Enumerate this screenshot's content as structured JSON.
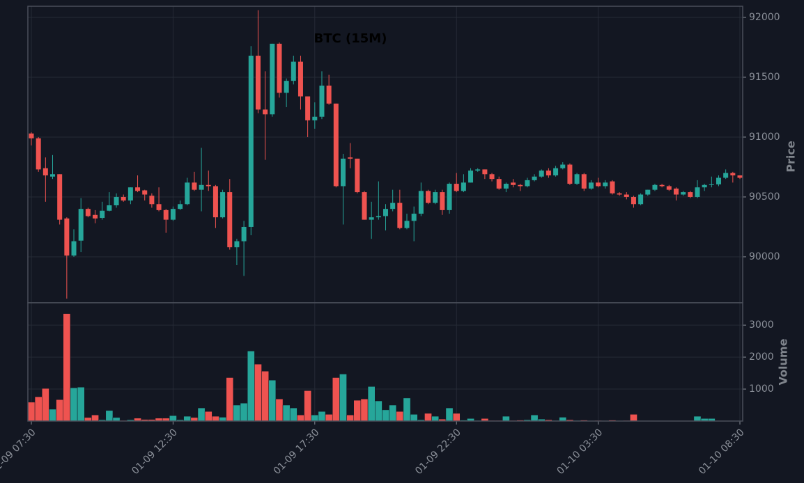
{
  "chart_data": {
    "type": "candlestick",
    "title": "BTC (15M)",
    "ylabel": "Price",
    "categories": [
      "01-09 07:30",
      null,
      null,
      null,
      null,
      null,
      null,
      null,
      null,
      null,
      null,
      null,
      null,
      null,
      null,
      null,
      null,
      null,
      null,
      null,
      "01-09 12:30",
      null,
      null,
      null,
      null,
      null,
      null,
      null,
      null,
      null,
      null,
      null,
      null,
      null,
      null,
      null,
      null,
      null,
      null,
      null,
      "01-09 17:30",
      null,
      null,
      null,
      null,
      null,
      null,
      null,
      null,
      null,
      null,
      null,
      null,
      null,
      null,
      null,
      null,
      null,
      null,
      null,
      "01-09 22:30",
      null,
      null,
      null,
      null,
      null,
      null,
      null,
      null,
      null,
      null,
      null,
      null,
      null,
      null,
      null,
      null,
      null,
      null,
      null,
      "01-10 03:30",
      null,
      null,
      null,
      null,
      null,
      null,
      null,
      null,
      null,
      null,
      null,
      null,
      null,
      null,
      null,
      null,
      null,
      null,
      null,
      "01-10 08:30"
    ],
    "open": [
      91030,
      90990,
      90740,
      90670,
      90690,
      90320,
      90010,
      90135,
      90400,
      90350,
      90325,
      90385,
      90430,
      90500,
      90470,
      90580,
      90555,
      90510,
      90440,
      90390,
      90310,
      90400,
      90440,
      90620,
      90560,
      90600,
      90590,
      90330,
      90540,
      90080,
      90130,
      90250,
      91680,
      91230,
      91190,
      91780,
      91370,
      91470,
      91630,
      91340,
      91140,
      91170,
      91430,
      91280,
      90590,
      90830,
      90820,
      90540,
      90310,
      90330,
      90340,
      90400,
      90450,
      90240,
      90300,
      90360,
      90550,
      90450,
      90540,
      90390,
      90610,
      90550,
      90620,
      90720,
      90730,
      90690,
      90650,
      90570,
      90620,
      90600,
      90590,
      90640,
      90670,
      90720,
      90680,
      90740,
      90770,
      90610,
      90690,
      90570,
      90620,
      90590,
      90630,
      90530,
      90520,
      90500,
      90440,
      90520,
      90560,
      90600,
      90590,
      90570,
      90520,
      90540,
      90500,
      90580,
      90600,
      90605,
      90660,
      90700,
      90680
    ],
    "high": [
      91040,
      91000,
      90830,
      90850,
      90690,
      90330,
      90230,
      90490,
      90410,
      90390,
      90460,
      90540,
      90530,
      90520,
      90580,
      90680,
      90560,
      90530,
      90580,
      90400,
      90420,
      90470,
      90660,
      90710,
      90910,
      90720,
      90600,
      90560,
      90650,
      90150,
      90300,
      91760,
      92060,
      91550,
      91780,
      91790,
      91490,
      91680,
      91680,
      91340,
      91290,
      91550,
      91520,
      91280,
      90860,
      90950,
      90820,
      90550,
      90460,
      90630,
      90440,
      90560,
      90560,
      90360,
      90420,
      90620,
      90560,
      90560,
      90560,
      90620,
      90700,
      90690,
      90740,
      90740,
      90730,
      90700,
      90670,
      90620,
      90650,
      90610,
      90660,
      90690,
      90730,
      90740,
      90760,
      90790,
      90780,
      90700,
      90700,
      90640,
      90660,
      90640,
      90640,
      90540,
      90540,
      90510,
      90530,
      90560,
      90610,
      90610,
      90600,
      90580,
      90550,
      90550,
      90640,
      90610,
      90670,
      90680,
      90730,
      90710,
      90680
    ],
    "low": [
      90930,
      90710,
      90460,
      90650,
      90270,
      89650,
      90000,
      90040,
      90330,
      90280,
      90310,
      90380,
      90410,
      90460,
      90440,
      90540,
      90470,
      90410,
      90380,
      90200,
      90300,
      90390,
      90430,
      90550,
      90380,
      90550,
      90240,
      90320,
      90060,
      89930,
      89840,
      90180,
      91200,
      90810,
      91170,
      91330,
      91250,
      91440,
      91230,
      91000,
      91070,
      91150,
      91270,
      90580,
      90270,
      90740,
      90530,
      90310,
      90150,
      90310,
      90220,
      90380,
      90230,
      90230,
      90130,
      90340,
      90440,
      90440,
      90350,
      90360,
      90540,
      90540,
      90620,
      90710,
      90650,
      90630,
      90560,
      90540,
      90580,
      90550,
      90580,
      90630,
      90660,
      90660,
      90670,
      90730,
      90600,
      90600,
      90550,
      90560,
      90580,
      90570,
      90520,
      90510,
      90480,
      90410,
      90430,
      90510,
      90550,
      90580,
      90550,
      90470,
      90510,
      90490,
      90490,
      90550,
      90580,
      90590,
      90650,
      90620,
      90650
    ],
    "close": [
      90990,
      90730,
      90680,
      90690,
      90310,
      90010,
      90130,
      90400,
      90340,
      90320,
      90385,
      90430,
      90500,
      90470,
      90580,
      90550,
      90520,
      90440,
      90390,
      90310,
      90400,
      90440,
      90620,
      90560,
      90600,
      90590,
      90330,
      90540,
      90080,
      90130,
      90250,
      91680,
      91230,
      91190,
      91780,
      91370,
      91470,
      91630,
      91340,
      91140,
      91170,
      91430,
      91280,
      90590,
      90820,
      90820,
      90540,
      90310,
      90330,
      90340,
      90400,
      90450,
      90240,
      90300,
      90360,
      90550,
      90450,
      90540,
      90390,
      90610,
      90550,
      90620,
      90720,
      90730,
      90690,
      90650,
      90570,
      90610,
      90600,
      90590,
      90640,
      90670,
      90720,
      90680,
      90740,
      90770,
      90610,
      90690,
      90570,
      90620,
      90590,
      90620,
      90530,
      90520,
      90500,
      90440,
      90520,
      90560,
      90600,
      90590,
      90560,
      90520,
      90540,
      90500,
      90580,
      90600,
      90605,
      90660,
      90700,
      90680,
      90660
    ],
    "up_color": "#26a69a",
    "down_color": "#ef5350",
    "ylim": [
      89616,
      92093
    ],
    "yticks": [
      90000,
      90500,
      91000,
      91500,
      92000
    ],
    "grid": true,
    "volume": {
      "ylabel": "Volume",
      "ylim": [
        0,
        3700
      ],
      "yticks": [
        1000,
        2000,
        3000
      ],
      "values": [
        590,
        760,
        1020,
        370,
        670,
        3360,
        1040,
        1060,
        110,
        190,
        40,
        330,
        110,
        20,
        40,
        90,
        50,
        50,
        90,
        90,
        170,
        40,
        150,
        110,
        410,
        300,
        150,
        120,
        1360,
        500,
        560,
        2190,
        1780,
        1560,
        1280,
        690,
        500,
        410,
        190,
        950,
        190,
        300,
        210,
        1360,
        1470,
        190,
        650,
        690,
        1080,
        630,
        350,
        500,
        300,
        720,
        210,
        40,
        240,
        150,
        60,
        410,
        240,
        30,
        80,
        20,
        80,
        20,
        20,
        150,
        20,
        30,
        40,
        190,
        60,
        40,
        20,
        120,
        40,
        20,
        30,
        10,
        20,
        10,
        30,
        10,
        20,
        210,
        5,
        5,
        5,
        5,
        5,
        5,
        5,
        5,
        150,
        80,
        80,
        10,
        10,
        10,
        10
      ]
    }
  }
}
